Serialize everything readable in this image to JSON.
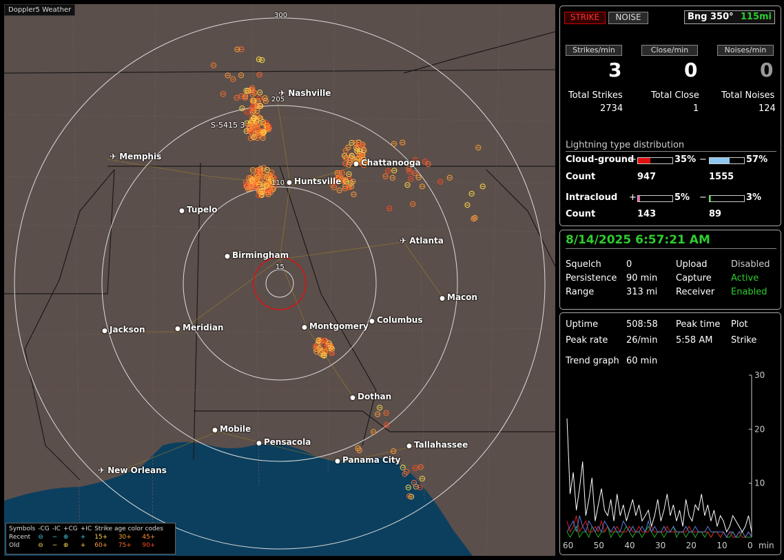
{
  "map": {
    "title": "Doppler5 Weather",
    "range_labels": [
      "300",
      "205",
      "110",
      "15"
    ],
    "strike_label": "S-5415 3",
    "cities": [
      {
        "name": "Nashville",
        "type": "airport"
      },
      {
        "name": "Memphis",
        "type": "airport"
      },
      {
        "name": "Chattanooga",
        "type": "city"
      },
      {
        "name": "Huntsville",
        "type": "city"
      },
      {
        "name": "Tupelo",
        "type": "city"
      },
      {
        "name": "Atlanta",
        "type": "airport"
      },
      {
        "name": "Birmingham",
        "type": "city"
      },
      {
        "name": "Macon",
        "type": "city"
      },
      {
        "name": "Jackson",
        "type": "city"
      },
      {
        "name": "Meridian",
        "type": "city"
      },
      {
        "name": "Montgomery",
        "type": "city"
      },
      {
        "name": "Columbus",
        "type": "city"
      },
      {
        "name": "Dothan",
        "type": "city"
      },
      {
        "name": "Mobile",
        "type": "city"
      },
      {
        "name": "Pensacola",
        "type": "city"
      },
      {
        "name": "Tallahassee",
        "type": "city"
      },
      {
        "name": "Panama City",
        "type": "city"
      },
      {
        "name": "New Orleans",
        "type": "airport"
      }
    ],
    "legend": {
      "symbols_label": "Symbols",
      "headers": [
        "-CG",
        "-IC",
        "+CG",
        "+IC"
      ],
      "age_label": "Strike age color codes",
      "rows": [
        {
          "label": "Recent",
          "ages": [
            "15+",
            "30+",
            "45+"
          ]
        },
        {
          "label": "Old",
          "ages": [
            "60+",
            "75+",
            "90+"
          ]
        }
      ],
      "age_colors": [
        "#ffd84a",
        "#ffa030",
        "#ff7a2a",
        "#ff9a40",
        "#ff6a30",
        "#ff4a20"
      ]
    }
  },
  "top": {
    "strike_btn": "STRIKE",
    "noise_btn": "NOISE",
    "bearing": "Bng 350°",
    "distance": "115mi",
    "strikes_per_min_label": "Strikes/min",
    "close_per_min_label": "Close/min",
    "noises_per_min_label": "Noises/min",
    "strikes_per_min": "3",
    "close_per_min": "0",
    "noises_per_min": "0",
    "total_strikes_label": "Total Strikes",
    "total_close_label": "Total Close",
    "total_noises_label": "Total Noises",
    "total_strikes": "2734",
    "total_close": "1",
    "total_noises": "124",
    "dist_title": "Lightning type distribution",
    "cg_label": "Cloud-ground",
    "ic_label": "Intracloud",
    "count_label": "Count",
    "plus": "+",
    "minus": "−",
    "cg_pos_pct": "35%",
    "cg_neg_pct": "57%",
    "cg_pos_count": "947",
    "cg_neg_count": "1555",
    "ic_pos_pct": "5%",
    "ic_neg_pct": "3%",
    "ic_pos_count": "143",
    "ic_neg_count": "89",
    "cg_pos_frac": 0.35,
    "cg_neg_frac": 0.57,
    "ic_pos_frac": 0.05,
    "ic_neg_frac": 0.03,
    "colors": {
      "cg_pos": "#e01010",
      "cg_neg": "#8ec8f0",
      "ic_pos": "#e060a0",
      "ic_neg": "#20c020"
    }
  },
  "status": {
    "datetime": "8/14/2025 6:57:21 AM",
    "squelch_label": "Squelch",
    "squelch": "0",
    "persistence_label": "Persistence",
    "persistence": "90 min",
    "range_label": "Range",
    "range": "313 mi",
    "upload_label": "Upload",
    "upload": "Disabled",
    "capture_label": "Capture",
    "capture": "Active",
    "receiver_label": "Receiver",
    "receiver": "Enabled"
  },
  "stats": {
    "uptime_label": "Uptime",
    "uptime": "508:58",
    "peak_time_label": "Peak time",
    "plot_label": "Plot",
    "peak_rate_label": "Peak rate",
    "peak_rate": "26/min",
    "peak_time": "5:58 AM",
    "plot": "Strike",
    "trend_label": "Trend graph",
    "trend": "60 min",
    "x_ticks": [
      "60",
      "50",
      "40",
      "30",
      "20",
      "10",
      "0"
    ],
    "x_unit": "min",
    "y_ticks": [
      "30",
      "20",
      "10"
    ]
  },
  "chart_data": {
    "type": "line",
    "ylim": [
      0,
      30
    ],
    "xlim": [
      60,
      0
    ],
    "series": [
      {
        "values": [
          22,
          8,
          12,
          5,
          9,
          14,
          4,
          7,
          11,
          3,
          6,
          9,
          5,
          4,
          7,
          3,
          8,
          4,
          6,
          3,
          5,
          7,
          4,
          6,
          3,
          4,
          5,
          2,
          4,
          7,
          3,
          5,
          8,
          4,
          6,
          3,
          5,
          2,
          7,
          4,
          3,
          6,
          5,
          8,
          4,
          6,
          3,
          5,
          2,
          4,
          3,
          1,
          2,
          4,
          3,
          2,
          1,
          2,
          4,
          1
        ]
      },
      {
        "values": [
          1,
          2,
          3,
          1,
          4,
          2,
          1,
          3,
          2,
          1,
          2,
          1,
          3,
          2,
          1,
          2,
          1,
          1,
          3,
          2,
          1,
          2,
          1,
          1,
          2,
          1,
          3,
          1,
          2,
          1,
          1,
          2,
          1,
          1,
          2,
          1,
          1,
          1,
          2,
          1,
          1,
          2,
          1,
          1,
          1,
          2,
          1,
          1,
          1,
          1,
          1,
          0,
          1,
          1,
          0,
          1,
          1,
          0,
          1,
          0
        ]
      },
      {
        "values": [
          3,
          1,
          2,
          4,
          1,
          2,
          3,
          1,
          1,
          2,
          1,
          3,
          1,
          2,
          1,
          1,
          2,
          1,
          1,
          1,
          2,
          1,
          1,
          2,
          1,
          1,
          1,
          2,
          1,
          1,
          1,
          1,
          2,
          1,
          1,
          1,
          1,
          1,
          1,
          2,
          1,
          1,
          1,
          1,
          1,
          1,
          0,
          1,
          1,
          0,
          1,
          0,
          1,
          0,
          0,
          1,
          0,
          0,
          1,
          0
        ]
      },
      {
        "values": [
          1,
          0,
          1,
          2,
          0,
          1,
          1,
          0,
          2,
          1,
          0,
          1,
          1,
          2,
          0,
          1,
          1,
          0,
          1,
          2,
          1,
          0,
          1,
          1,
          0,
          1,
          2,
          1,
          0,
          1,
          1,
          0,
          1,
          1,
          2,
          0,
          1,
          1,
          0,
          1,
          1,
          0,
          1,
          1,
          0,
          1,
          0,
          1,
          1,
          0,
          1,
          0,
          0,
          1,
          0,
          0,
          1,
          0,
          0,
          0
        ]
      }
    ],
    "colors": [
      "#ffffff",
      "#5a7ad8",
      "#e02020",
      "#20b020"
    ]
  }
}
